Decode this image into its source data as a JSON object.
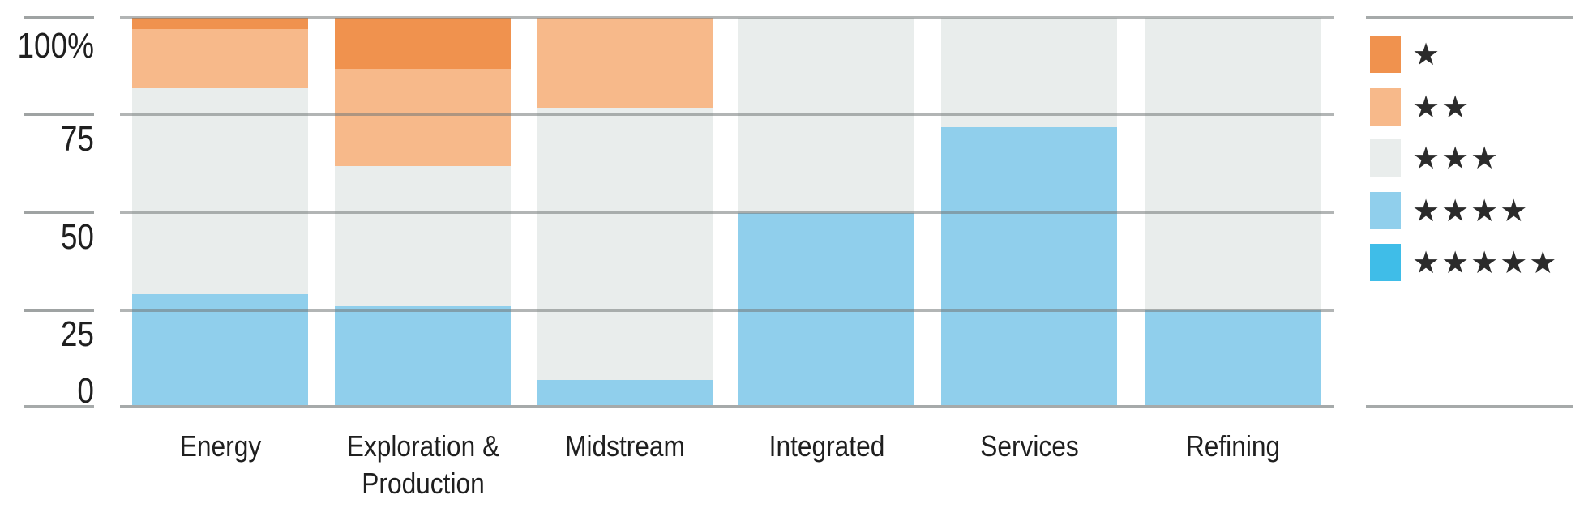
{
  "chart_data": {
    "type": "bar",
    "stacked": true,
    "percent_scale": true,
    "categories": [
      "Energy",
      "Exploration & Production",
      "Midstream",
      "Integrated",
      "Services",
      "Refining"
    ],
    "series": [
      {
        "name": "1 star",
        "stars": "★",
        "color": "#F0924E",
        "values": [
          3,
          13,
          0,
          0,
          0,
          0
        ]
      },
      {
        "name": "2 stars",
        "stars": "★★",
        "color": "#F7B98A",
        "values": [
          15,
          25,
          23,
          0,
          0,
          0
        ]
      },
      {
        "name": "3 stars",
        "stars": "★★★",
        "color": "#E9EDEC",
        "values": [
          53,
          36,
          70,
          50,
          28,
          75
        ]
      },
      {
        "name": "4 stars",
        "stars": "★★★★",
        "color": "#90CFEC",
        "values": [
          29,
          26,
          7,
          50,
          72,
          25
        ]
      },
      {
        "name": "5 stars",
        "stars": "★★★★★",
        "color": "#3FBDE8",
        "values": [
          0,
          0,
          0,
          0,
          0,
          0
        ]
      }
    ],
    "y_axis": {
      "range": [
        0,
        100
      ],
      "ticks": [
        {
          "value": 100,
          "label": "100%"
        },
        {
          "value": 75,
          "label": "75"
        },
        {
          "value": 50,
          "label": "50"
        },
        {
          "value": 25,
          "label": "25"
        },
        {
          "value": 0,
          "label": "0"
        }
      ],
      "gridlines": true
    },
    "legend_position": "right",
    "title": "",
    "xlabel": "",
    "ylabel": ""
  },
  "colors": {
    "axis_text": "#1F1F1F",
    "star_glyph": "#2B2B2B",
    "tick": "#9FA3A3",
    "baseline": "#A6AAAA"
  }
}
